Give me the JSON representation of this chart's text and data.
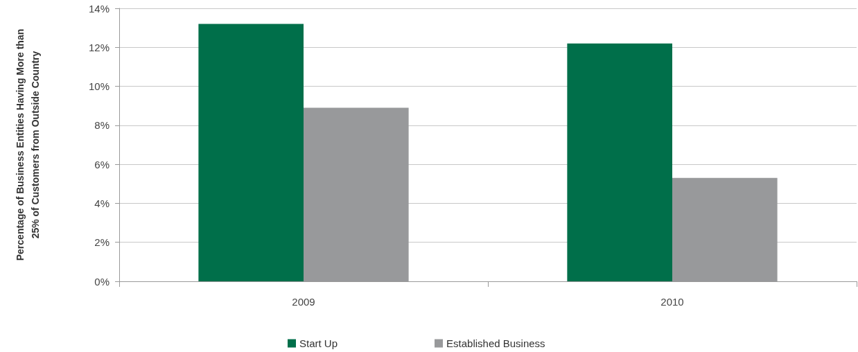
{
  "chart_data": {
    "type": "bar",
    "ylabel": "Percentage of Business Entities Having More than 25% of Customers from Outside Country",
    "categories": [
      "2009",
      "2010"
    ],
    "series": [
      {
        "name": "Start Up",
        "color": "#006f4a",
        "values": [
          13.2,
          12.2
        ]
      },
      {
        "name": "Established Business",
        "color": "#98999b",
        "values": [
          8.9,
          5.3
        ]
      }
    ],
    "ylim": [
      0,
      14
    ],
    "yticks": [
      {
        "value": 0,
        "label": "0%"
      },
      {
        "value": 2,
        "label": "2%"
      },
      {
        "value": 4,
        "label": "4%"
      },
      {
        "value": 6,
        "label": "6%"
      },
      {
        "value": 8,
        "label": "8%"
      },
      {
        "value": 10,
        "label": "10%"
      },
      {
        "value": 12,
        "label": "12%"
      },
      {
        "value": 14,
        "label": "14%"
      }
    ],
    "grid": "y",
    "legend": "bottom"
  }
}
